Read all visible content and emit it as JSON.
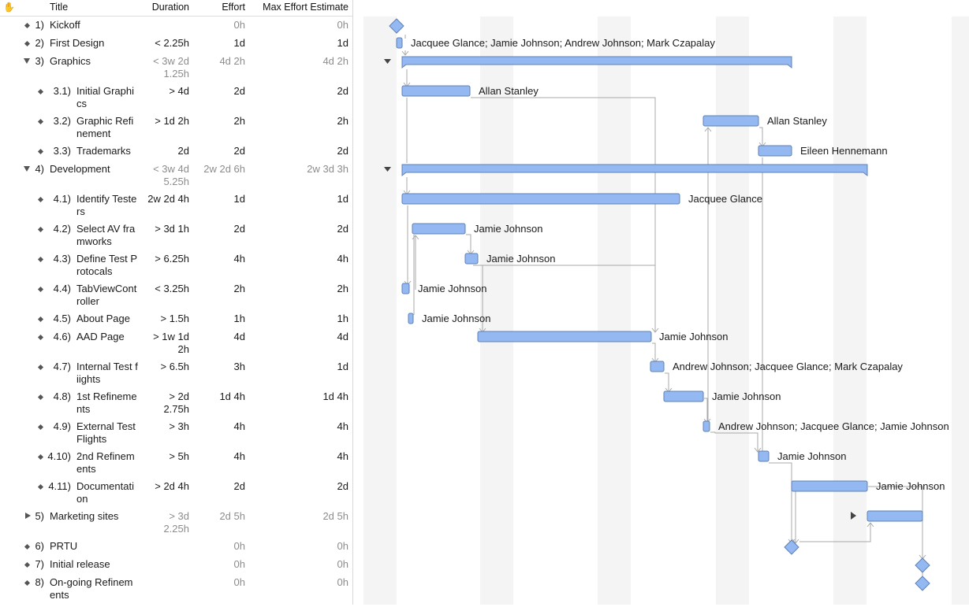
{
  "header": {
    "corner_icon": "hand-icon",
    "title": "Title",
    "duration": "Duration",
    "effort": "Effort",
    "max_effort": "Max Effort Estimate"
  },
  "colors": {
    "bar_fill": "#94b9f2",
    "bar_stroke": "#5e80b5",
    "line": "#a8a8a8",
    "stripe": "#f4f4f4"
  },
  "rows": [
    {
      "num": "1)",
      "title": "Kickoff",
      "duration": "",
      "effort": "0h",
      "max": "0h",
      "effort_gray": true,
      "max_gray": true,
      "kind": "leaf",
      "depth": 0,
      "label": "",
      "lines": 1
    },
    {
      "num": "2)",
      "title": "First Design",
      "duration": "< 2.25h",
      "effort": "1d",
      "max": "1d",
      "kind": "leaf",
      "depth": 0,
      "label": "Jacquee Glance; Jamie Johnson; Andrew Johnson; Mark Czapalay",
      "lines": 1
    },
    {
      "num": "3)",
      "title": "Graphics",
      "duration": "< 3w 2d 1.25h",
      "effort": "4d 2h",
      "max": "4d 2h",
      "gray": true,
      "kind": "group-open",
      "depth": 0,
      "label": "",
      "lines": 2
    },
    {
      "num": "3.1)",
      "title": "Initial Graphics",
      "duration": "> 4d",
      "effort": "2d",
      "max": "2d",
      "kind": "leaf",
      "depth": 1,
      "label": "Allan Stanley",
      "lines": 2
    },
    {
      "num": "3.2)",
      "title": "Graphic Refinement",
      "duration": "> 1d 2h",
      "effort": "2h",
      "max": "2h",
      "kind": "leaf",
      "depth": 1,
      "label": "Allan Stanley",
      "lines": 2
    },
    {
      "num": "3.3)",
      "title": "Trademarks",
      "duration": "2d",
      "effort": "2d",
      "max": "2d",
      "kind": "leaf",
      "depth": 1,
      "label": "Eileen Hennemann",
      "lines": 1
    },
    {
      "num": "4)",
      "title": "Development",
      "duration": "< 3w 4d 5.25h",
      "effort": "2w 2d 6h",
      "max": "2w 3d 3h",
      "gray": true,
      "kind": "group-open",
      "depth": 0,
      "label": "",
      "lines": 2
    },
    {
      "num": "4.1)",
      "title": "Identify Testers",
      "duration": "2w 2d 4h",
      "effort": "1d",
      "max": "1d",
      "kind": "leaf",
      "depth": 1,
      "label": "Jacquee Glance",
      "lines": 2
    },
    {
      "num": "4.2)",
      "title": "Select AV framworks",
      "duration": "> 3d 1h",
      "effort": "2d",
      "max": "2d",
      "kind": "leaf",
      "depth": 1,
      "label": "Jamie Johnson",
      "lines": 2
    },
    {
      "num": "4.3)",
      "title": "Define Test Protocals",
      "duration": "> 6.25h",
      "effort": "4h",
      "max": "4h",
      "kind": "leaf",
      "depth": 1,
      "label": "Jamie Johnson",
      "lines": 2
    },
    {
      "num": "4.4)",
      "title": "TabViewController",
      "duration": "< 3.25h",
      "effort": "2h",
      "max": "2h",
      "kind": "leaf",
      "depth": 1,
      "label": "Jamie Johnson",
      "lines": 2
    },
    {
      "num": "4.5)",
      "title": "About Page",
      "duration": "> 1.5h",
      "effort": "1h",
      "max": "1h",
      "kind": "leaf",
      "depth": 1,
      "label": "Jamie Johnson",
      "lines": 1
    },
    {
      "num": "4.6)",
      "title": "AAD Page",
      "duration": "> 1w 1d 2h",
      "effort": "4d",
      "max": "4d",
      "kind": "leaf",
      "depth": 1,
      "label": "Jamie Johnson",
      "lines": 2
    },
    {
      "num": "4.7)",
      "title": "Internal Test fiights",
      "duration": "> 6.5h",
      "effort": "3h",
      "max": "1d",
      "kind": "leaf",
      "depth": 1,
      "label": "Andrew Johnson; Jacquee Glance; Mark Czapalay",
      "lines": 2
    },
    {
      "num": "4.8)",
      "title": "1st Refinements",
      "duration": "> 2d 2.75h",
      "effort": "1d 4h",
      "max": "1d 4h",
      "kind": "leaf",
      "depth": 1,
      "label": "Jamie Johnson",
      "lines": 2
    },
    {
      "num": "4.9)",
      "title": "External Test Flights",
      "duration": "> 3h",
      "effort": "4h",
      "max": "4h",
      "kind": "leaf",
      "depth": 1,
      "label": "Andrew Johnson; Jacquee Glance; Jamie Johnson",
      "lines": 2
    },
    {
      "num": "4.10)",
      "title": "2nd Refinements",
      "duration": "> 5h",
      "effort": "4h",
      "max": "4h",
      "kind": "leaf",
      "depth": 1,
      "label": "Jamie Johnson",
      "lines": 2
    },
    {
      "num": "4.11)",
      "title": "Documentation",
      "duration": "> 2d 4h",
      "effort": "2d",
      "max": "2d",
      "kind": "leaf",
      "depth": 1,
      "label": "Jamie Johnson",
      "lines": 2
    },
    {
      "num": "5)",
      "title": "Marketing sites",
      "duration": "> 3d 2.25h",
      "effort": "2d 5h",
      "max": "2d 5h",
      "gray": true,
      "kind": "group-closed",
      "depth": 0,
      "label": "",
      "lines": 2
    },
    {
      "num": "6)",
      "title": "PRTU",
      "duration": "",
      "effort": "0h",
      "max": "0h",
      "effort_gray": true,
      "max_gray": true,
      "kind": "leaf",
      "depth": 0,
      "label": "",
      "lines": 1
    },
    {
      "num": "7)",
      "title": "Initial release",
      "duration": "",
      "effort": "0h",
      "max": "0h",
      "effort_gray": true,
      "max_gray": true,
      "kind": "leaf",
      "depth": 0,
      "label": "",
      "lines": 1
    },
    {
      "num": "8)",
      "title": "On-going Refinements",
      "duration": "",
      "effort": "0h",
      "max": "0h",
      "effort_gray": true,
      "max_gray": true,
      "kind": "leaf",
      "depth": 0,
      "label": "",
      "lines": 2
    }
  ]
}
